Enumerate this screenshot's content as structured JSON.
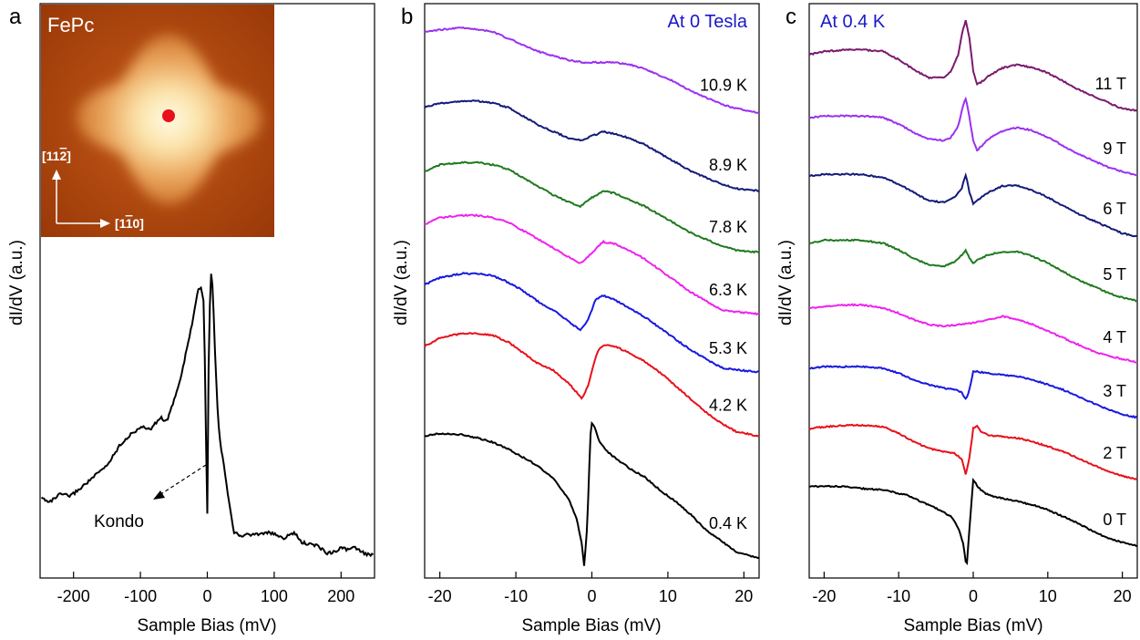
{
  "chart_data": [
    {
      "type": "line",
      "panel_label": "a",
      "xlabel": "Sample Bias (mV)",
      "ylabel": "dI/dV (a.u.)",
      "xlim": [
        -250,
        250
      ],
      "xticks": [
        -200,
        -100,
        0,
        100,
        200
      ],
      "xtick_labels": [
        "-200",
        "-100",
        "0",
        "100",
        "200"
      ],
      "grid": false,
      "series": [
        {
          "color": "#000000",
          "x": [
            -248,
            -235,
            -220,
            -205,
            -190,
            -170,
            -150,
            -130,
            -115,
            -100,
            -85,
            -70,
            -60,
            -50,
            -40,
            -30,
            -22,
            -15,
            -10,
            -5,
            -2,
            0,
            2,
            5,
            8,
            12,
            16,
            20,
            25,
            30,
            40,
            50,
            60,
            75,
            90,
            100,
            115,
            130,
            140,
            150,
            165,
            180,
            190,
            200,
            210,
            220,
            235,
            248
          ],
          "y": [
            28,
            26,
            30,
            29,
            33,
            39,
            45,
            56,
            61,
            65,
            64,
            70,
            68,
            79,
            90,
            107,
            120,
            135,
            139,
            130,
            60,
            20,
            100,
            148,
            138,
            100,
            70,
            55,
            45,
            32,
            10,
            8,
            9,
            9,
            10,
            9,
            7,
            10,
            5,
            4,
            3,
            -1,
            0,
            2,
            1,
            2,
            -1,
            -2
          ]
        }
      ],
      "annotations": [
        {
          "text": "Kondo"
        }
      ],
      "inset": {
        "label": "FePc",
        "axis_labels": [
          "[11̅2̅]",
          "[11̅0]"
        ],
        "up_label_parts": [
          "[11",
          "2",
          "]"
        ],
        "right_label_parts": [
          "[1",
          "1",
          "0]"
        ],
        "marker_color": "#e8101a"
      }
    },
    {
      "type": "line",
      "panel_label": "b",
      "title": "At 0 Tesla",
      "title_color": "#1a18c8",
      "xlabel": "Sample Bias (mV)",
      "ylabel": "dI/dV (a.u.)",
      "xlim": [
        -22,
        22
      ],
      "xticks": [
        -20,
        -10,
        0,
        10,
        20
      ],
      "xtick_labels": [
        "-20",
        "-10",
        "0",
        "10",
        "20"
      ],
      "grid": false,
      "series": [
        {
          "name": "0.4 K",
          "color": "#000000",
          "x": [
            -22,
            -20,
            -17,
            -15,
            -13,
            -11,
            -9,
            -7,
            -5,
            -3,
            -2,
            -1.3,
            -1,
            -0.6,
            -0.2,
            0,
            0.5,
            1,
            2,
            3,
            5,
            7,
            9,
            11,
            13,
            15,
            17,
            19,
            22
          ],
          "y": [
            0,
            0.1,
            0.05,
            -0.1,
            -0.3,
            -0.6,
            -1,
            -1.4,
            -2,
            -2.9,
            -3.8,
            -5,
            -6,
            -4,
            0,
            0.6,
            0.3,
            -0.3,
            -0.7,
            -1,
            -1.5,
            -1.9,
            -2.5,
            -3,
            -3.6,
            -4.3,
            -4.8,
            -5.3,
            -5.6
          ]
        },
        {
          "name": "4.2 K",
          "color": "#e8101a",
          "x": [
            -22,
            -20,
            -17,
            -15,
            -13,
            -11,
            -9,
            -7,
            -5,
            -3,
            -2,
            -1.3,
            -0.5,
            0,
            0.5,
            1,
            2,
            3,
            5,
            7,
            9,
            11,
            13,
            15,
            17,
            19,
            22
          ],
          "y": [
            0,
            0.4,
            0.6,
            0.6,
            0.5,
            0.2,
            -0.3,
            -0.8,
            -1.1,
            -1.7,
            -2.1,
            -2.4,
            -1.8,
            -1.1,
            -0.5,
            -0.1,
            0.1,
            0,
            -0.3,
            -0.7,
            -1.2,
            -1.8,
            -2.4,
            -3,
            -3.5,
            -3.9,
            -4.1
          ]
        },
        {
          "name": "5.3 K",
          "color": "#1818e0",
          "x": [
            -22,
            -20,
            -17,
            -15,
            -13,
            -11,
            -9,
            -7,
            -5,
            -3,
            -1.5,
            -0.5,
            0.5,
            1.5,
            3,
            5,
            7,
            9,
            11,
            13,
            15,
            17,
            19,
            22
          ],
          "y": [
            0,
            0.3,
            0.5,
            0.5,
            0.4,
            0.1,
            -0.3,
            -0.8,
            -1.2,
            -1.7,
            -2.1,
            -1.6,
            -0.7,
            -0.5,
            -0.7,
            -1.1,
            -1.5,
            -2,
            -2.5,
            -3,
            -3.4,
            -3.8,
            -3.9,
            -4
          ]
        },
        {
          "name": "6.3 K",
          "color": "#ee22ee",
          "x": [
            -22,
            -20,
            -17,
            -15,
            -13,
            -11,
            -9,
            -7,
            -5,
            -3,
            -1.5,
            0,
            1.5,
            3,
            5,
            7,
            9,
            11,
            13,
            15,
            17,
            19,
            22
          ],
          "y": [
            0,
            0.3,
            0.4,
            0.4,
            0.3,
            0.1,
            -0.3,
            -0.7,
            -1.1,
            -1.5,
            -1.8,
            -1.3,
            -0.8,
            -0.9,
            -1.2,
            -1.6,
            -2.1,
            -2.6,
            -3.1,
            -3.5,
            -3.9,
            -4,
            -4.1
          ]
        },
        {
          "name": "7.8 K",
          "color": "#1e7a1e",
          "x": [
            -22,
            -20,
            -17,
            -15,
            -13,
            -11,
            -9,
            -7,
            -5,
            -3,
            -1.5,
            0,
            1.5,
            3,
            5,
            7,
            9,
            11,
            13,
            15,
            17,
            19,
            22
          ],
          "y": [
            0,
            0.3,
            0.4,
            0.4,
            0.3,
            0.1,
            -0.3,
            -0.7,
            -1.1,
            -1.4,
            -1.6,
            -1.2,
            -0.9,
            -1,
            -1.3,
            -1.6,
            -2,
            -2.4,
            -2.8,
            -3.1,
            -3.4,
            -3.6,
            -3.7
          ]
        },
        {
          "name": "8.9 K",
          "color": "#141a78",
          "x": [
            -22,
            -20,
            -17,
            -15,
            -13,
            -11,
            -9,
            -7,
            -5,
            -3,
            -1.5,
            0,
            1.5,
            3,
            5,
            7,
            9,
            11,
            13,
            15,
            17,
            19,
            22
          ],
          "y": [
            0,
            0.2,
            0.3,
            0.3,
            0.2,
            0,
            -0.4,
            -0.8,
            -1.1,
            -1.4,
            -1.5,
            -1.3,
            -1.1,
            -1.2,
            -1.4,
            -1.7,
            -2.1,
            -2.5,
            -2.9,
            -3.2,
            -3.5,
            -3.7,
            -3.8
          ]
        },
        {
          "name": "10.9 K",
          "color": "#9b30f0",
          "x": [
            -22,
            -20,
            -17,
            -15,
            -13,
            -11,
            -9,
            -7,
            -5,
            -3,
            -1,
            1,
            3,
            5,
            7,
            9,
            11,
            13,
            15,
            17,
            19,
            22
          ],
          "y": [
            0,
            0.1,
            0.2,
            0.1,
            0,
            -0.3,
            -0.6,
            -0.9,
            -1.1,
            -1.3,
            -1.4,
            -1.4,
            -1.4,
            -1.5,
            -1.7,
            -2,
            -2.3,
            -2.7,
            -3,
            -3.3,
            -3.5,
            -3.7
          ]
        }
      ]
    },
    {
      "type": "line",
      "panel_label": "c",
      "title": "At 0.4 K",
      "title_color": "#1a18c8",
      "xlabel": "Sample Bias (mV)",
      "ylabel": "dI/dV (a.u.)",
      "xlim": [
        -22,
        22
      ],
      "xticks": [
        -20,
        -10,
        0,
        10,
        20
      ],
      "xtick_labels": [
        "-20",
        "-10",
        "0",
        "10",
        "20"
      ],
      "grid": false,
      "series": [
        {
          "name": "0 T",
          "color": "#000000",
          "x": [
            -22,
            -20,
            -17,
            -15,
            -12,
            -9,
            -7,
            -5,
            -3,
            -2,
            -1.3,
            -0.9,
            -0.5,
            0,
            0.5,
            1,
            2,
            4,
            6,
            8,
            10,
            12,
            14,
            16,
            18,
            20,
            22
          ],
          "y": [
            0,
            0.05,
            0,
            -0.1,
            -0.2,
            -0.5,
            -0.9,
            -1.3,
            -1.8,
            -2.5,
            -3.5,
            -5,
            -2.5,
            0.4,
            0.1,
            -0.2,
            -0.5,
            -0.7,
            -0.9,
            -1.1,
            -1.4,
            -1.8,
            -2.2,
            -2.7,
            -3.1,
            -3.4,
            -3.6
          ]
        },
        {
          "name": "2 T",
          "color": "#e8101a",
          "x": [
            -22,
            -20,
            -17,
            -15,
            -12,
            -10,
            -8,
            -6,
            -4,
            -2.5,
            -1.5,
            -1,
            -0.5,
            0,
            0.5,
            1,
            2,
            4,
            6,
            8,
            10,
            12,
            14,
            16,
            18,
            20,
            22
          ],
          "y": [
            0,
            0.1,
            0.2,
            0.2,
            0.1,
            -0.3,
            -0.8,
            -1.2,
            -1.4,
            -1.5,
            -1.9,
            -2.8,
            -1.8,
            0,
            0.2,
            -0.2,
            -0.4,
            -0.5,
            -0.6,
            -0.8,
            -1.1,
            -1.4,
            -1.8,
            -2.2,
            -2.6,
            -2.9,
            -3.1
          ]
        },
        {
          "name": "3 T",
          "color": "#1818e0",
          "x": [
            -22,
            -20,
            -17,
            -15,
            -12,
            -10,
            -8,
            -6,
            -4,
            -2.5,
            -1.5,
            -1,
            -0.5,
            0,
            0.5,
            2,
            4,
            6,
            8,
            10,
            12,
            14,
            16,
            18,
            20,
            22
          ],
          "y": [
            0,
            0.1,
            0.1,
            0.1,
            0,
            -0.3,
            -0.7,
            -1,
            -1.2,
            -1.3,
            -1.5,
            -1.9,
            -1.3,
            -0.2,
            -0.2,
            -0.3,
            -0.4,
            -0.5,
            -0.7,
            -1,
            -1.3,
            -1.7,
            -2.1,
            -2.5,
            -2.8,
            -3
          ]
        },
        {
          "name": "4 T",
          "color": "#ee22ee",
          "x": [
            -22,
            -20,
            -17,
            -15,
            -12,
            -10,
            -8,
            -6,
            -4,
            -2,
            0,
            2,
            4,
            6,
            8,
            10,
            12,
            14,
            16,
            18,
            20,
            22
          ],
          "y": [
            0,
            0.1,
            0.2,
            0.2,
            0,
            -0.3,
            -0.7,
            -1,
            -1.1,
            -1,
            -0.9,
            -0.7,
            -0.5,
            -0.7,
            -1,
            -1.4,
            -1.8,
            -2.2,
            -2.6,
            -2.9,
            -3.1,
            -3.3
          ]
        },
        {
          "name": "5 T",
          "color": "#1e7a1e",
          "x": [
            -22,
            -20,
            -17,
            -15,
            -12,
            -10,
            -8,
            -6,
            -4,
            -2.5,
            -1.5,
            -1,
            -0.5,
            0,
            0.5,
            2,
            4,
            6,
            8,
            10,
            12,
            14,
            16,
            18,
            20,
            22
          ],
          "y": [
            0,
            0.2,
            0.2,
            0.2,
            0,
            -0.4,
            -0.9,
            -1.3,
            -1.4,
            -1.1,
            -0.7,
            -0.4,
            -0.9,
            -1.2,
            -1,
            -0.7,
            -0.5,
            -0.5,
            -0.8,
            -1.2,
            -1.7,
            -2.2,
            -2.6,
            -3,
            -3.3,
            -3.5
          ]
        },
        {
          "name": "6 T",
          "color": "#141a78",
          "x": [
            -22,
            -20,
            -17,
            -15,
            -12,
            -10,
            -8,
            -6,
            -4,
            -2.5,
            -1.5,
            -1,
            -0.5,
            0,
            0.5,
            2,
            4,
            6,
            8,
            10,
            12,
            14,
            16,
            18,
            20,
            22
          ],
          "y": [
            0,
            0.1,
            0.1,
            0.1,
            -0.1,
            -0.5,
            -1,
            -1.5,
            -1.6,
            -1.3,
            -0.7,
            0.1,
            -1,
            -1.7,
            -1.5,
            -1,
            -0.6,
            -0.6,
            -0.9,
            -1.3,
            -1.8,
            -2.3,
            -2.7,
            -3.1,
            -3.5,
            -3.7
          ]
        },
        {
          "name": "9 T",
          "color": "#9b30f0",
          "x": [
            -22,
            -20,
            -17,
            -15,
            -12,
            -10,
            -8,
            -6,
            -4,
            -3,
            -2,
            -1.5,
            -1,
            -0.5,
            0,
            0.5,
            1,
            2,
            4,
            6,
            8,
            10,
            12,
            14,
            16,
            18,
            20,
            22
          ],
          "y": [
            0,
            0.1,
            0.1,
            0.1,
            0,
            -0.4,
            -0.9,
            -1.3,
            -1.4,
            -1.2,
            -0.5,
            0.5,
            1.2,
            0,
            -1.4,
            -2,
            -1.8,
            -1.3,
            -0.8,
            -0.6,
            -0.8,
            -1.2,
            -1.7,
            -2.2,
            -2.6,
            -3,
            -3.3,
            -3.5
          ]
        },
        {
          "name": "11 T",
          "color": "#7a1a6e",
          "x": [
            -22,
            -20,
            -17,
            -15,
            -12,
            -10,
            -8,
            -6,
            -4,
            -3,
            -2,
            -1.5,
            -1,
            -0.5,
            0,
            0.5,
            1,
            2,
            4,
            6,
            8,
            10,
            12,
            14,
            16,
            18,
            20,
            22
          ],
          "y": [
            0,
            0.2,
            0.3,
            0.3,
            0.2,
            -0.3,
            -0.9,
            -1.4,
            -1.4,
            -1,
            0,
            1.3,
            2.1,
            1,
            -1,
            -1.8,
            -1.7,
            -1.3,
            -0.8,
            -0.6,
            -0.8,
            -1.1,
            -1.6,
            -2.1,
            -2.5,
            -2.9,
            -3.3,
            -3.4
          ]
        }
      ]
    }
  ]
}
